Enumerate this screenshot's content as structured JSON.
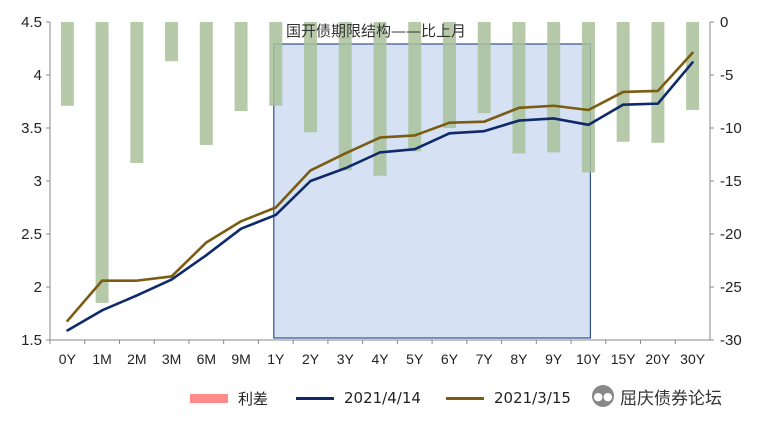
{
  "chart_data": {
    "type": "bar+line",
    "title": "国开债期限结构——比上月",
    "categories": [
      "0Y",
      "1M",
      "2M",
      "3M",
      "6M",
      "9M",
      "1Y",
      "2Y",
      "3Y",
      "4Y",
      "5Y",
      "6Y",
      "7Y",
      "8Y",
      "9Y",
      "10Y",
      "15Y",
      "20Y",
      "30Y"
    ],
    "left_axis": {
      "ylim": [
        1.5,
        4.5
      ],
      "ticks": [
        "1.5",
        "2",
        "2.5",
        "3",
        "3.5",
        "4",
        "4.5"
      ]
    },
    "right_axis": {
      "ylim": [
        -30,
        0
      ],
      "ticks": [
        "-30",
        "-25",
        "-20",
        "-15",
        "-10",
        "-5",
        "0"
      ]
    },
    "series": [
      {
        "name": "利差",
        "axis": "right",
        "render": "bar",
        "color": "#a9c19a",
        "values": [
          -7.9,
          -26.5,
          -13.3,
          -3.7,
          -11.6,
          -8.4,
          -7.9,
          -10.4,
          -14.0,
          -14.5,
          -12.2,
          -10.0,
          -8.6,
          -12.4,
          -12.3,
          -14.2,
          -11.3,
          -11.4,
          -8.3
        ]
      },
      {
        "name": "2021/4/14",
        "axis": "left",
        "render": "line",
        "color": "#0e2a6b",
        "values": [
          1.59,
          1.78,
          1.92,
          2.07,
          2.3,
          2.55,
          2.68,
          3.0,
          3.12,
          3.27,
          3.3,
          3.45,
          3.47,
          3.57,
          3.59,
          3.53,
          3.72,
          3.73,
          4.12
        ]
      },
      {
        "name": "2021/3/15",
        "axis": "left",
        "render": "line",
        "color": "#7a5c12",
        "values": [
          1.68,
          2.06,
          2.06,
          2.1,
          2.42,
          2.62,
          2.75,
          3.1,
          3.26,
          3.41,
          3.43,
          3.55,
          3.56,
          3.69,
          3.71,
          3.67,
          3.84,
          3.85,
          4.21
        ]
      }
    ],
    "highlight_range": {
      "from": "1Y",
      "to": "10Y",
      "fill": "#d6e1f3",
      "stroke": "#2f4f8f"
    },
    "legend_position": "bottom"
  },
  "legend_swatch_colors": {
    "spread": "#ff8a8a"
  },
  "watermark": {
    "icon": "wechat-icon",
    "text": "屈庆债券论坛"
  }
}
